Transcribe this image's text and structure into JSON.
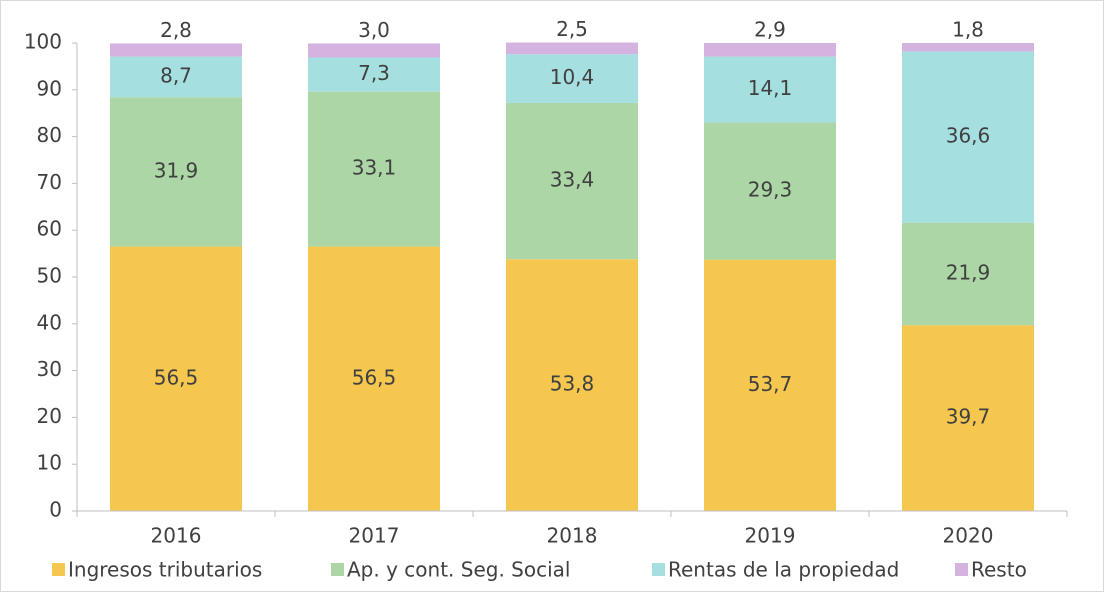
{
  "chart_data": {
    "type": "stacked_bar",
    "categories": [
      "2016",
      "2017",
      "2018",
      "2019",
      "2020"
    ],
    "series": [
      {
        "name": "Ingresos tributarios",
        "color": "#f5c74e",
        "values": [
          56.5,
          56.5,
          53.8,
          53.7,
          39.7
        ],
        "value_labels": [
          "56,5",
          "56,5",
          "53,8",
          "53,7",
          "39,7"
        ]
      },
      {
        "name": "Ap. y cont. Seg. Social",
        "color": "#acd6a5",
        "values": [
          31.9,
          33.1,
          33.4,
          29.3,
          21.9
        ],
        "value_labels": [
          "31,9",
          "33,1",
          "33,4",
          "29,3",
          "21,9"
        ]
      },
      {
        "name": "Rentas de la propiedad",
        "color": "#a6dfe0",
        "values": [
          8.7,
          7.3,
          10.4,
          14.1,
          36.6
        ],
        "value_labels": [
          "8,7",
          "7,3",
          "10,4",
          "14,1",
          "36,6"
        ]
      },
      {
        "name": "Resto",
        "color": "#d4b3e0",
        "values": [
          2.8,
          3.0,
          2.5,
          2.9,
          1.8
        ],
        "value_labels": [
          "2,8",
          "3,0",
          "2,5",
          "2,9",
          "1,8"
        ]
      }
    ],
    "ylim": [
      0,
      100
    ],
    "yticks": [
      0,
      10,
      20,
      30,
      40,
      50,
      60,
      70,
      80,
      90,
      100
    ],
    "grid": false,
    "legend": "bottom"
  }
}
